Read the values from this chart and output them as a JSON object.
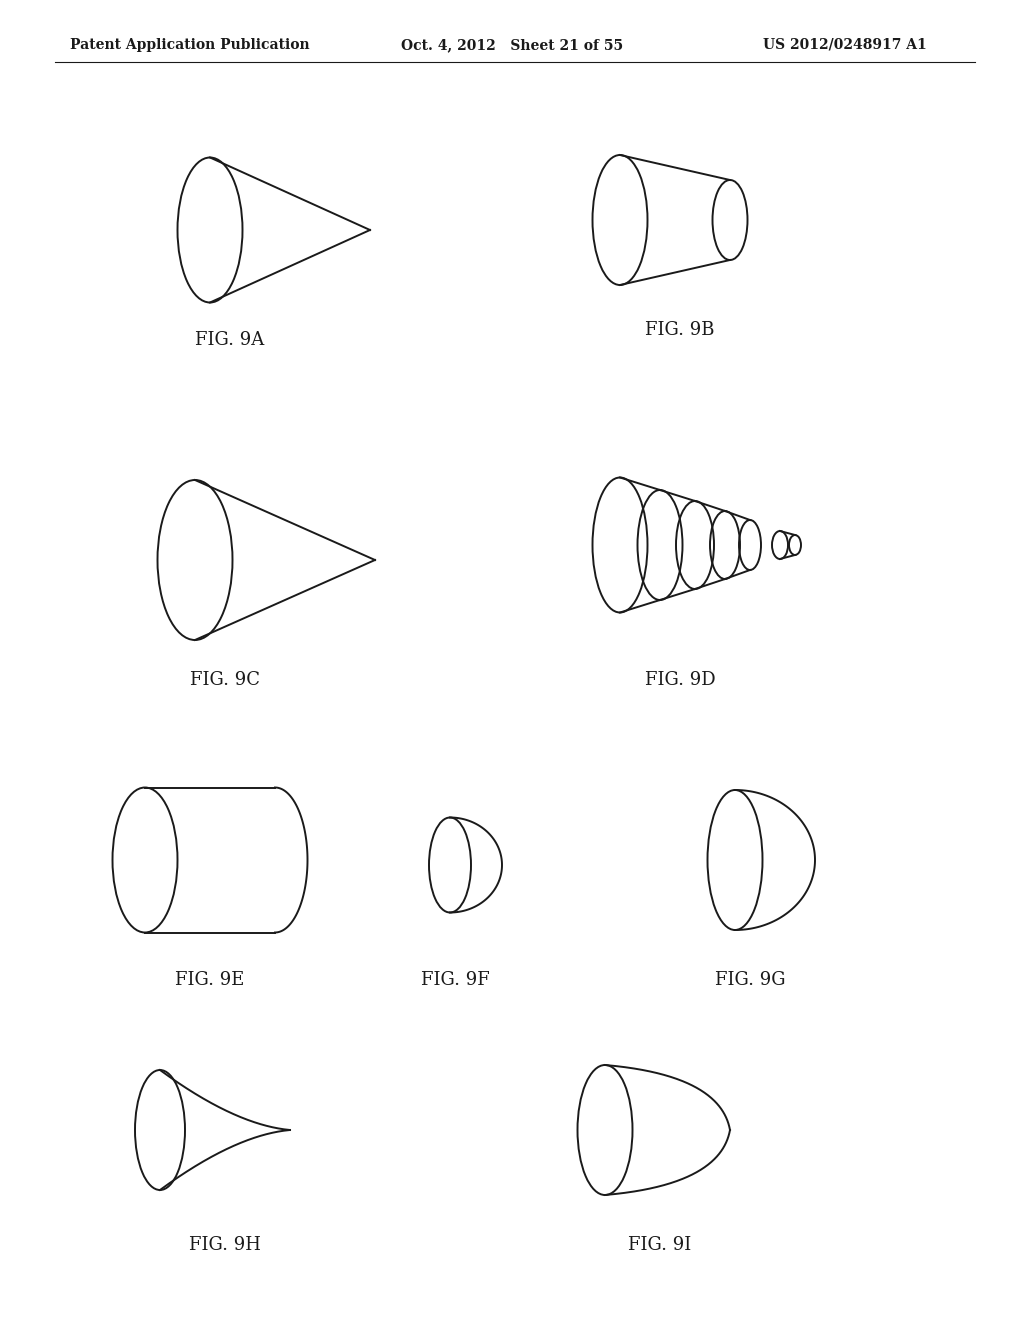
{
  "bg_color": "#ffffff",
  "line_color": "#1a1a1a",
  "line_width": 1.4,
  "header_left": "Patent Application Publication",
  "header_mid": "Oct. 4, 2012   Sheet 21 of 55",
  "header_right": "US 2012/0248917 A1"
}
